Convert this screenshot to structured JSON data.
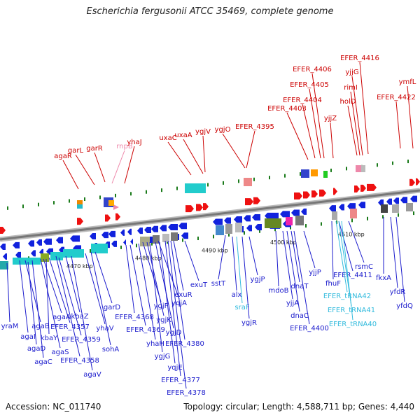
{
  "title": "Escherichia fergusonii ATCC 35469, complete genome",
  "accession_text": "Accession: NC_011740",
  "summary_text": "Topology: circular; Length: 4,588,711 bp; Genes: 4,440",
  "colors": {
    "top_label": "#cc0000",
    "top_label_pink": "#ee88aa",
    "bottom_label": "#1a1acc",
    "trna_label": "#33bbdd",
    "forward_arrow": "#ee1111",
    "reverse_arrow": "#1122dd",
    "backbone": "#888888"
  },
  "scale_labels": [
    "4470 kbp",
    "4480 kbp",
    "4490 kbp",
    "4500 kbp",
    "4510 kbp"
  ],
  "top_genes": [
    "agaR",
    "garL",
    "garR",
    "rnpB",
    "yhaJ",
    "uxaC",
    "uxaA",
    "ygjV",
    "ygjO",
    "EFER_4395",
    "EFER_4403",
    "EFER_4404",
    "EFER_4405",
    "EFER_4406",
    "yjjZ",
    "holD",
    "rimI",
    "yjjG",
    "EFER_4416",
    "EFER_4422",
    "ymfL"
  ],
  "bottom_genes": [
    "yraM",
    "agaI",
    "agaB",
    "agaD",
    "agaC",
    "agaA",
    "agaS",
    "EFER_4357",
    "kbaY",
    "EFER_4359",
    "EFER_4358",
    "kbaZ",
    "agaV",
    "yhaV",
    "garD",
    "sohA",
    "EFER_4368",
    "EFER_4369",
    "yhaH",
    "ygjF",
    "ygjG",
    "ygjK",
    "ygjD",
    "yqjE",
    "yqjA",
    "EFER_4377",
    "EFER_4378",
    "EFER_4380",
    "exuR",
    "exuT",
    "sstT",
    "alx",
    "sraF",
    "ygjR",
    "ygjP",
    "mdoB",
    "yjjA",
    "dnaT",
    "dnaC",
    "EFER_4400",
    "yjjP",
    "fhuF",
    "EFER_4411",
    "rsmC",
    "EFER_tRNA42",
    "EFER_tRNA41",
    "EFER_tRNA40",
    "fkxA",
    "yfdR",
    "yfdQ"
  ]
}
